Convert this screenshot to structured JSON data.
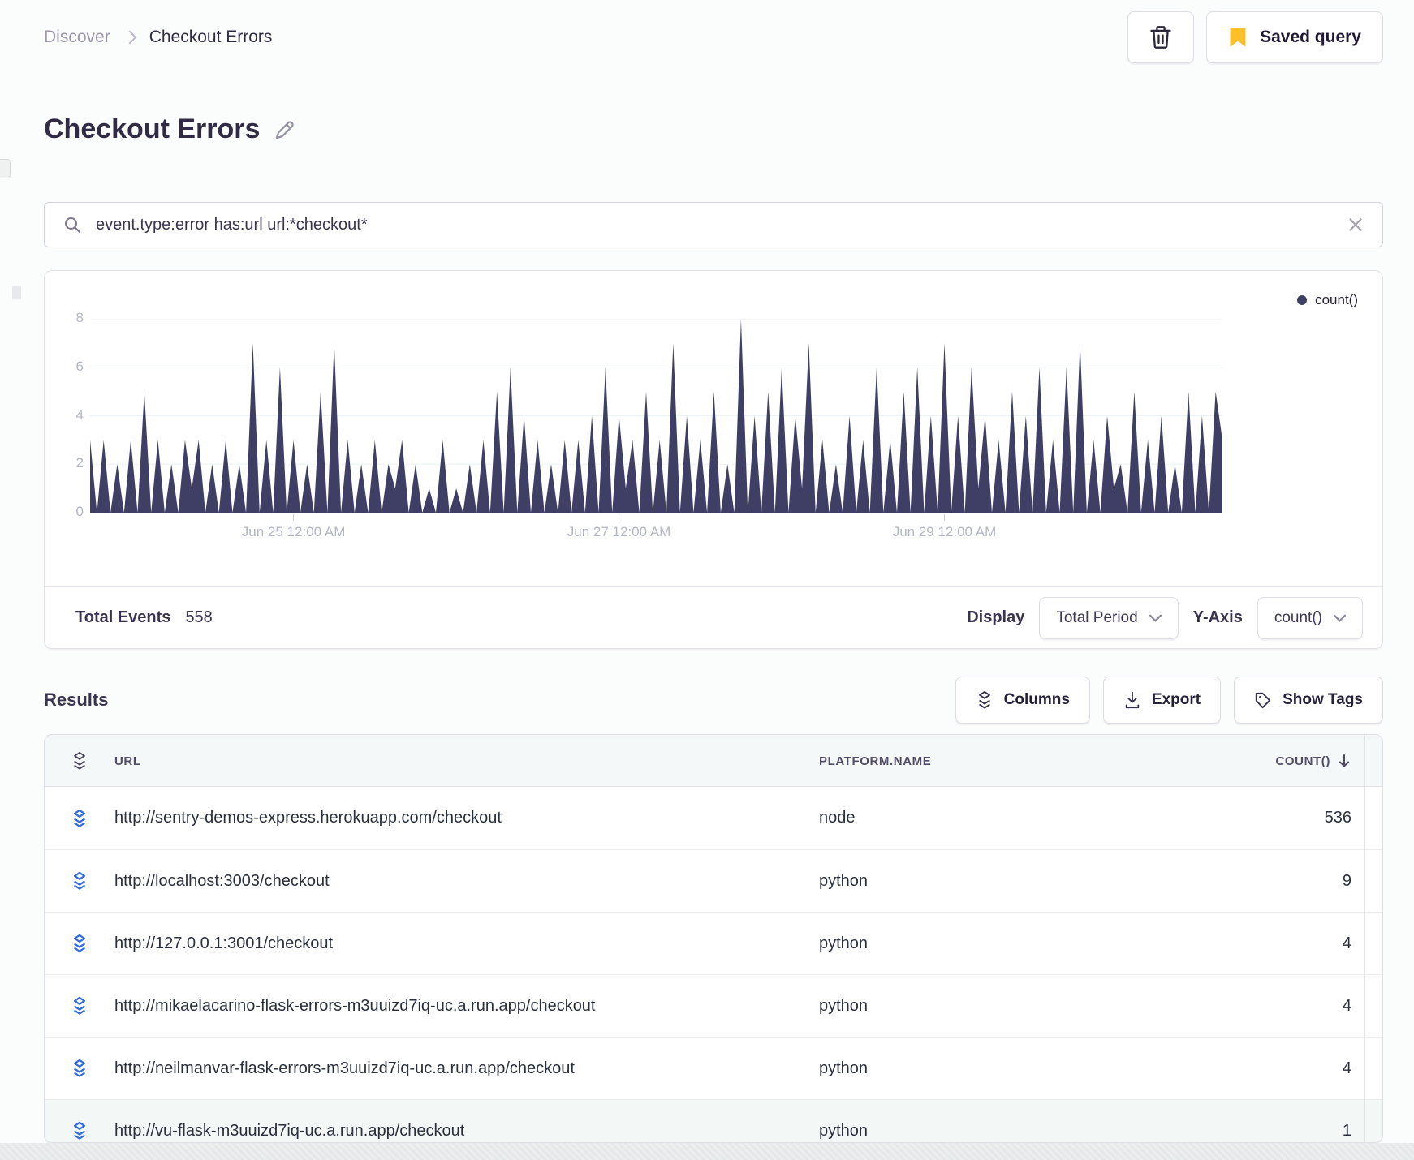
{
  "breadcrumb": {
    "root": "Discover",
    "current": "Checkout Errors"
  },
  "header": {
    "title": "Checkout Errors"
  },
  "toolbar": {
    "saved_query_label": "Saved query"
  },
  "search": {
    "query": "event.type:error has:url url:*checkout*"
  },
  "chart_panel": {
    "legend_label": "count()",
    "footer": {
      "total_events_label": "Total Events",
      "total_events_value": "558",
      "display_label": "Display",
      "display_value": "Total Period",
      "yaxis_label": "Y-Axis",
      "yaxis_value": "count()"
    }
  },
  "chart_data": {
    "type": "area",
    "series": [
      {
        "name": "count()",
        "values": [
          3,
          0,
          3,
          0,
          2,
          0,
          3,
          0,
          5,
          0,
          3,
          0,
          2,
          0,
          3,
          1,
          3,
          0,
          2,
          0,
          3,
          0,
          2,
          0,
          7,
          0,
          3,
          0,
          6,
          0,
          3,
          0,
          2,
          0,
          5,
          0,
          7,
          0,
          3,
          0,
          2,
          0,
          3,
          0,
          2,
          1,
          3,
          0,
          2,
          0,
          1,
          0,
          3,
          0,
          1,
          0,
          2,
          0,
          3,
          0,
          5,
          0,
          6,
          0,
          4,
          0,
          3,
          0,
          2,
          0,
          3,
          0,
          3,
          0,
          4,
          0,
          6,
          0,
          4,
          1,
          3,
          0,
          5,
          0,
          3,
          0,
          7,
          0,
          4,
          0,
          3,
          0,
          5,
          0,
          2,
          0,
          8,
          0,
          4,
          0,
          5,
          0,
          6,
          0,
          4,
          1,
          7,
          0,
          3,
          0,
          2,
          0,
          4,
          0,
          3,
          0,
          6,
          0,
          3,
          0,
          5,
          0,
          6,
          0,
          4,
          0,
          7,
          0,
          4,
          0,
          6,
          1,
          4,
          0,
          3,
          0,
          5,
          0,
          4,
          0,
          6,
          0,
          3,
          0,
          6,
          0,
          7,
          0,
          3,
          0,
          4,
          1,
          2,
          0,
          5,
          0,
          3,
          0,
          4,
          0,
          2,
          0,
          5,
          0,
          4,
          0,
          5,
          3
        ]
      }
    ],
    "x_ticks": [
      {
        "index": 30,
        "label": "Jun 25 12:00 AM"
      },
      {
        "index": 78,
        "label": "Jun 27 12:00 AM"
      },
      {
        "index": 126,
        "label": "Jun 29 12:00 AM"
      }
    ],
    "y_ticks": [
      0,
      2,
      4,
      6,
      8
    ],
    "ylim": [
      0,
      8
    ],
    "legend_entries": [
      "count()"
    ],
    "legend_position": "top-right",
    "grid": true,
    "color": "#3F3F66"
  },
  "results": {
    "title": "Results",
    "columns_label": "Columns",
    "export_label": "Export",
    "show_tags_label": "Show Tags"
  },
  "table": {
    "headers": [
      "URL",
      "PLATFORM.NAME",
      "COUNT()"
    ],
    "rows": [
      {
        "url": "http://sentry-demos-express.herokuapp.com/checkout",
        "platform": "node",
        "count": "536"
      },
      {
        "url": "http://localhost:3003/checkout",
        "platform": "python",
        "count": "9"
      },
      {
        "url": "http://127.0.0.1:3001/checkout",
        "platform": "python",
        "count": "4"
      },
      {
        "url": "http://mikaelacarino-flask-errors-m3uuizd7iq-uc.a.run.app/checkout",
        "platform": "python",
        "count": "4"
      },
      {
        "url": "http://neilmanvar-flask-errors-m3uuizd7iq-uc.a.run.app/checkout",
        "platform": "python",
        "count": "4"
      },
      {
        "url": "http://vu-flask-m3uuizd7iq-uc.a.run.app/checkout",
        "platform": "python",
        "count": "1"
      }
    ]
  },
  "colors": {
    "chart_series": "#3F3F66",
    "row_icon_blue": "#2F6AE0",
    "bookmark_yellow": "#FDC02A",
    "grid_line": "#edf2f6",
    "axis_text": "#b3b6c6"
  }
}
